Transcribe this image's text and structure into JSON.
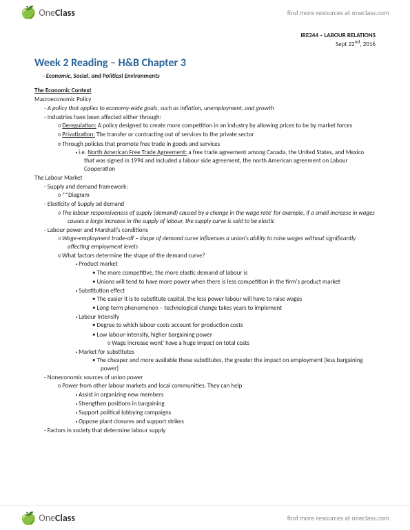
{
  "logo": {
    "brand1": "One",
    "brand2": "Class"
  },
  "tagline": "find more resources at oneclass.com",
  "course": {
    "code": "IRE244 – LABOUR RELATIONS",
    "date": "Sept 22",
    "dateSuffix": "nd",
    "year": ", 2016"
  },
  "title": "Week 2 Reading – H&B Chapter 3",
  "subtitle": "Economic, Social, and Political Environments",
  "s1": {
    "head": "The Economic Context",
    "sub": "Macroeconomic Policy",
    "policyDef": "A policy that applies to economy-wide goals, such as inflation, unemployment, and growth",
    "industries": "Industries have been affected either through:",
    "dereg": {
      "label": "Deregulation:",
      "text": " A policy designed to create more competition in an industry by allowing prices to be by market forces"
    },
    "priv": {
      "label": "Privatization:",
      "text": " The transfer or contracting out of services to the private sector"
    },
    "trade": "Through policies that promote free trade in goods and services",
    "nafta": {
      "prefix": "i.e. ",
      "label": "North American Free Trade Agreement:",
      "text": " a free trade agreement among Canada, the United States, and Mexico that was signed in 1994 and included a labour side agreement, the north American agreement on Labour Cooperation"
    }
  },
  "s2": {
    "head": "The Labour Market",
    "supply": "Supply and demand framework:",
    "diagram": "**Diagram",
    "elasticity": "Elasticity of Supply ad demand",
    "elasticityDef": "The labour responsiveness of supply (demand) caused by a change in the wage rate' for example, if a small increase in wages causes a large increase in the supply of labour, the supply curve is said to be elastic",
    "marshall": "Labour power and Marshall's conditions",
    "tradeoff": "Wage-employment trade-off – shape of demand curve influences a union's ability to raise wages without significantly affecting employment levels",
    "factors": "What factors determine the shape of the demand curve?",
    "pm": {
      "label": "Product market",
      "a": "The more competitive, the more elastic demand of labour is",
      "b": "Unions will tend to have more power when there is less competition in the firm's product market"
    },
    "se": {
      "label": "Substitution effect",
      "a": "The easier it is to substitute capital, the less power labour will have to raise wages",
      "b": "Long-term phenomenon – technological change takes years to implement"
    },
    "li": {
      "label": "Labour Intensify",
      "a": "Degree to which labour costs account for production costs",
      "b": "Low labour-intensity, higher bargaining power",
      "c": "Wage increase wont' have a huge impact on total costs"
    },
    "ms": {
      "label": "Market for substitutes",
      "a": "The cheaper and more available these substitutes, the greater the impact on employment (less bargaining power)"
    },
    "nonecon": "Noneconomic sources of union power",
    "power": "Power from other labour markets and local communities. They can help",
    "help": {
      "a": "Assist in organizing new members",
      "b": "Strengthen positions in bargaining",
      "c": "Support political lobbying campaigns",
      "d": "Oppose plant closures and support strikes"
    },
    "society": "Factors in society that determine labour supply"
  }
}
